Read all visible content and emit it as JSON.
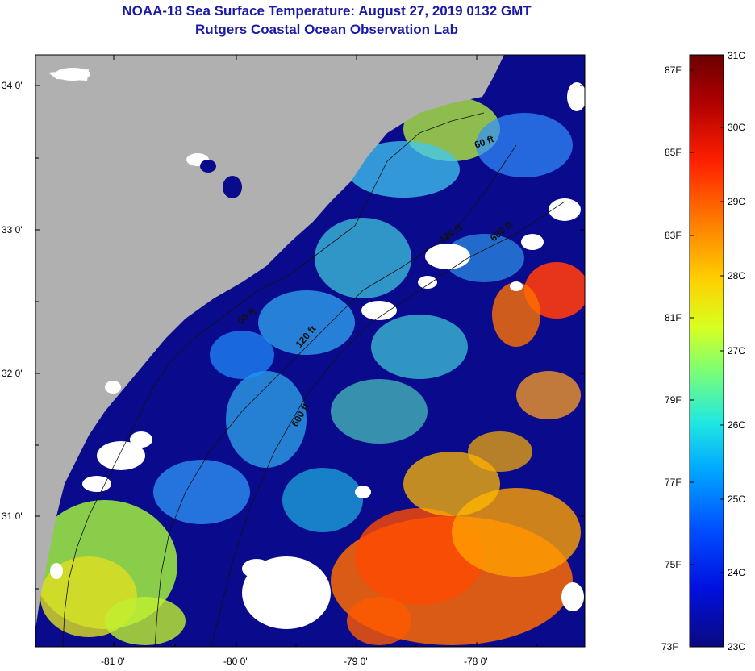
{
  "header": {
    "title": "NOAA-18 Sea Surface Temperature:  August 27, 2019 0132 GMT",
    "subtitle": "Rutgers Coastal Ocean Observation Lab"
  },
  "map": {
    "lat_labels": [
      "34 0'",
      "33 0'",
      "32 0'",
      "31 0'"
    ],
    "lon_labels": [
      "-81 0'",
      "-80 0'",
      "-79 0'",
      "-78 0'"
    ],
    "depth_contours": [
      "60 ft",
      "120 ft",
      "600 ft",
      "60 ft",
      "120 ft",
      "600 ft"
    ],
    "colors": {
      "land": "#b0b0b0",
      "cloud": "#ffffff",
      "water_deep": "#0a0a8c"
    }
  },
  "colorbar": {
    "fahrenheit_labels": [
      "87F",
      "85F",
      "83F",
      "81F",
      "79F",
      "77F",
      "75F",
      "73F"
    ],
    "celsius_labels": [
      "31C",
      "30C",
      "29C",
      "28C",
      "27C",
      "26C",
      "25C",
      "24C",
      "23C"
    ],
    "colors": [
      "#7a0000",
      "#e01000",
      "#ff6a00",
      "#ffd200",
      "#b8ff40",
      "#30f0d0",
      "#0090ff",
      "#0010f0",
      "#0a0a8c"
    ]
  }
}
